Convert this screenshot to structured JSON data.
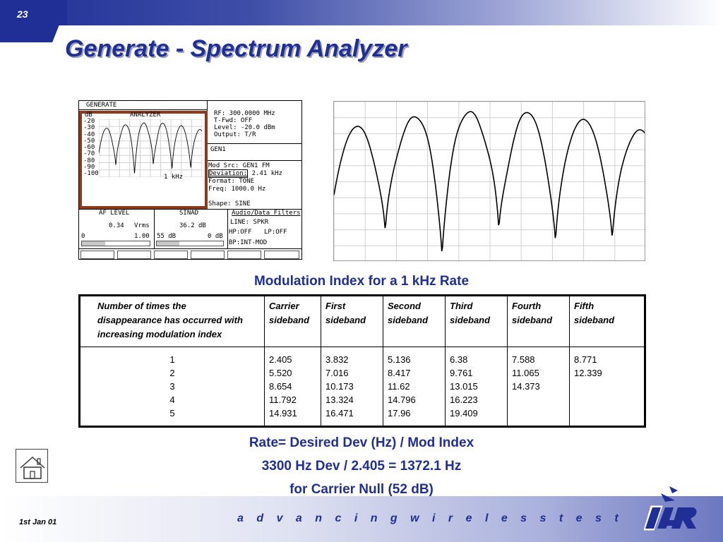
{
  "slide": {
    "number": "23",
    "title": "Generate - Spectrum Analyzer",
    "date": "1st Jan 01",
    "tagline": "a d v a n c i n g   w i r e l e s s   t e s t"
  },
  "instrument": {
    "mode": "GENERATE",
    "analyzer": {
      "unit": "dB",
      "label": "ANALYZER",
      "scale": [
        "-20",
        "-30",
        "-40",
        "-50",
        "-60",
        "-70",
        "-80",
        "-90",
        "-100"
      ],
      "span": "1 kHz"
    },
    "rf_settings": [
      {
        "label": "RF:",
        "value": "300.0000 MHz"
      },
      {
        "label": "T-Fwd:",
        "value": "OFF"
      },
      {
        "label": "Level:",
        "value": "-20.0 dBm"
      },
      {
        "label": "Output:",
        "value": "T/R"
      }
    ],
    "gen_label": "GEN1",
    "mod_settings": [
      {
        "label": "Mod Src:",
        "value": "GEN1     FM"
      },
      {
        "label": "Deviation:",
        "value": "2.41 kHz"
      },
      {
        "label": "Format:",
        "value": "TONE"
      },
      {
        "label": "Freq:",
        "value": "1000.0 Hz"
      },
      {
        "label": "Shape:",
        "value": "SINE"
      }
    ],
    "af_level": {
      "title": "AF LEVEL",
      "value": "0.34",
      "unit": "Vrms",
      "min": "0",
      "max": "1.00",
      "fill": 0.34
    },
    "sinad": {
      "title": "SINAD",
      "value": "36.2",
      "unit": "dB",
      "min": "55 dB",
      "max": "0 dB",
      "fill": 0.34
    },
    "filters": {
      "title": "Audio/Data Filters",
      "line": "LINE: SPKR",
      "hp": "HP:OFF",
      "lp": "LP:OFF",
      "bp": "BP:INT-MOD"
    }
  },
  "caption_top": "Modulation Index for a 1 kHz Rate",
  "table": {
    "headers": [
      [
        "Number of times the",
        "disappearance has occurred with",
        "increasing modulation index"
      ],
      [
        "Carrier",
        "sideband"
      ],
      [
        "First",
        "sideband"
      ],
      [
        "Second",
        "sideband"
      ],
      [
        "Third",
        "sideband"
      ],
      [
        "Fourth",
        "sideband"
      ],
      [
        "Fifth",
        "sideband"
      ]
    ],
    "columns": [
      [
        "1",
        "2",
        "3",
        "4",
        "5"
      ],
      [
        "2.405",
        "5.520",
        "8.654",
        "11.792",
        "14.931"
      ],
      [
        "3.832",
        "7.016",
        "10.173",
        "13.324",
        "16.471"
      ],
      [
        "5.136",
        "8.417",
        "11.62",
        "14.796",
        "17.96"
      ],
      [
        "6.38",
        "9.761",
        "13.015",
        "16.223",
        "19.409"
      ],
      [
        "7.588",
        "11.065",
        "14.373"
      ],
      [
        "8.771",
        "12.339"
      ]
    ]
  },
  "formula": {
    "line1": "Rate= Desired Dev (Hz) / Mod Index",
    "line2": "3300 Hz Dev / 2.405 = 1372.1 Hz",
    "line3": "for Carrier Null (52 dB)"
  },
  "colors": {
    "brand": "#1f2f96",
    "highlight": "#8e3a1a"
  },
  "icons": {
    "home": "home-icon",
    "logo": "ifr-logo"
  }
}
